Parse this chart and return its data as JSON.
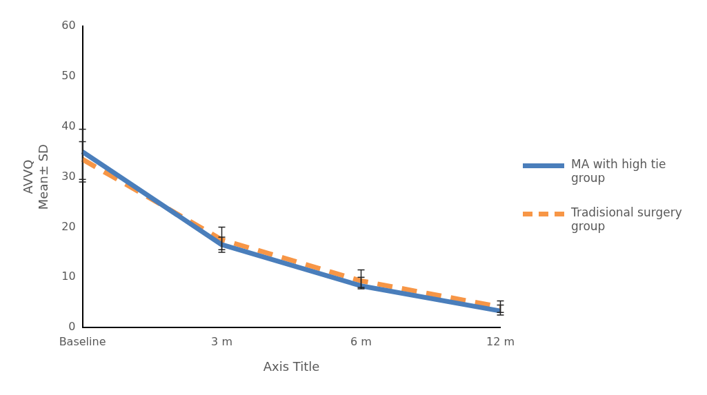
{
  "chart_data": {
    "type": "line",
    "xlabel": "Axis Title",
    "ylabel": "AVVQ\nMean± SD",
    "categories": [
      "Baseline",
      "3 m",
      "6 m",
      "12 m"
    ],
    "series": [
      {
        "name": "MA with high tie group",
        "color": "#4a7ebb",
        "line_style": "solid",
        "values": [
          35,
          16.5,
          8.3,
          3.3
        ],
        "errors": [
          [
            29.5,
            39.5
          ],
          [
            15,
            18
          ],
          [
            7.7,
            10
          ],
          [
            2.5,
            4.5
          ]
        ]
      },
      {
        "name": "Tradisional surgery group",
        "color": "#f79646",
        "line_style": "dashed",
        "values": [
          33.5,
          17.5,
          9.3,
          4.1
        ],
        "errors": [
          [
            29,
            37
          ],
          [
            15.5,
            20
          ],
          [
            8,
            11.5
          ],
          [
            3,
            5.3
          ]
        ]
      }
    ],
    "ylim": [
      0,
      60
    ],
    "yticks": [
      0,
      10,
      20,
      30,
      40,
      50,
      60
    ],
    "grid": false,
    "legend": "right",
    "marker": "none"
  }
}
